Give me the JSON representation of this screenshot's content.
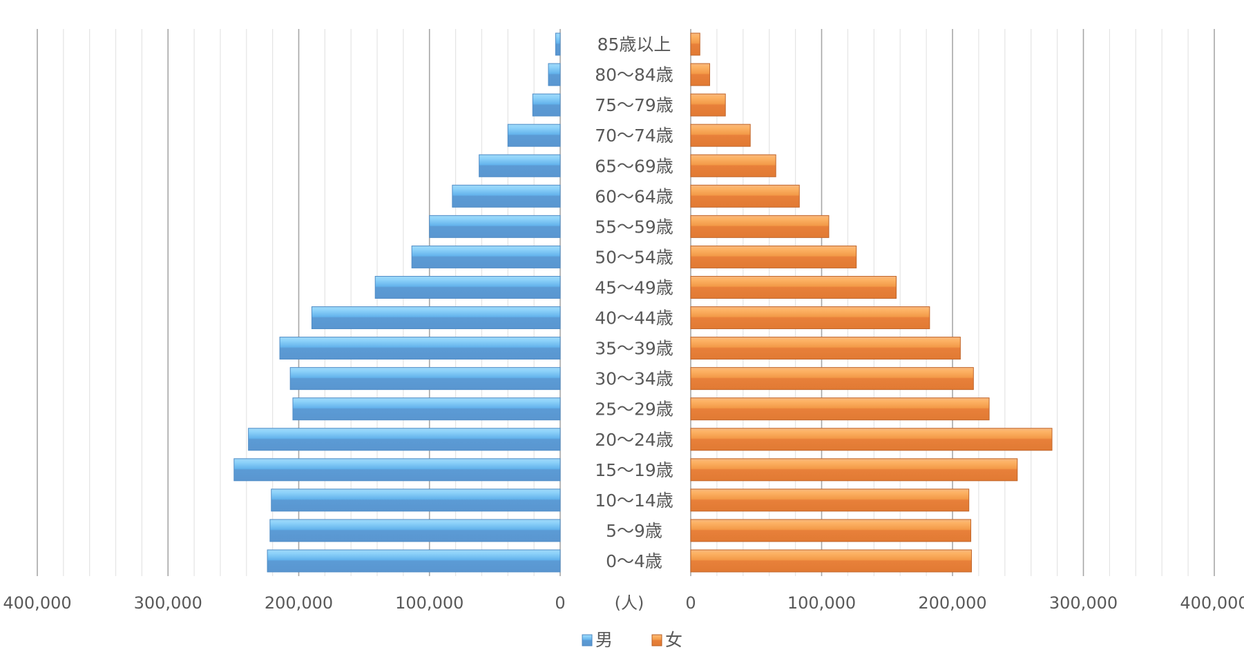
{
  "chart_data": {
    "type": "bar",
    "orientation": "horizontal",
    "subtype": "population-pyramid",
    "categories": [
      "0～4歳",
      "5～9歳",
      "10～14歳",
      "15～19歳",
      "20～24歳",
      "25～29歳",
      "30～34歳",
      "35～39歳",
      "40～44歳",
      "45～49歳",
      "50～54歳",
      "55～59歳",
      "60～64歳",
      "65～69歳",
      "70～74歳",
      "75～79歳",
      "80～84歳",
      "85歳以上"
    ],
    "series": [
      {
        "name": "男",
        "color": "#5b9bd5",
        "values": [
          224000,
          222000,
          221000,
          249500,
          238500,
          204500,
          206500,
          214500,
          190000,
          141500,
          113500,
          100000,
          82500,
          62000,
          40000,
          21000,
          9000,
          3500
        ]
      },
      {
        "name": "女",
        "color": "#ed7d31",
        "values": [
          214500,
          214000,
          212500,
          249500,
          276000,
          228000,
          216000,
          206000,
          182500,
          157000,
          126500,
          105500,
          83000,
          65000,
          45500,
          26500,
          14500,
          7000
        ]
      }
    ],
    "xlim": [
      0,
      400000
    ],
    "x_ticks_left": [
      "400,000",
      "300,000",
      "200,000",
      "100,000",
      "0"
    ],
    "x_ticks_right": [
      "0",
      "100,000",
      "200,000",
      "300,000",
      "400,000"
    ],
    "unit_label": "(人)",
    "grid": true,
    "legend": "bottom"
  }
}
